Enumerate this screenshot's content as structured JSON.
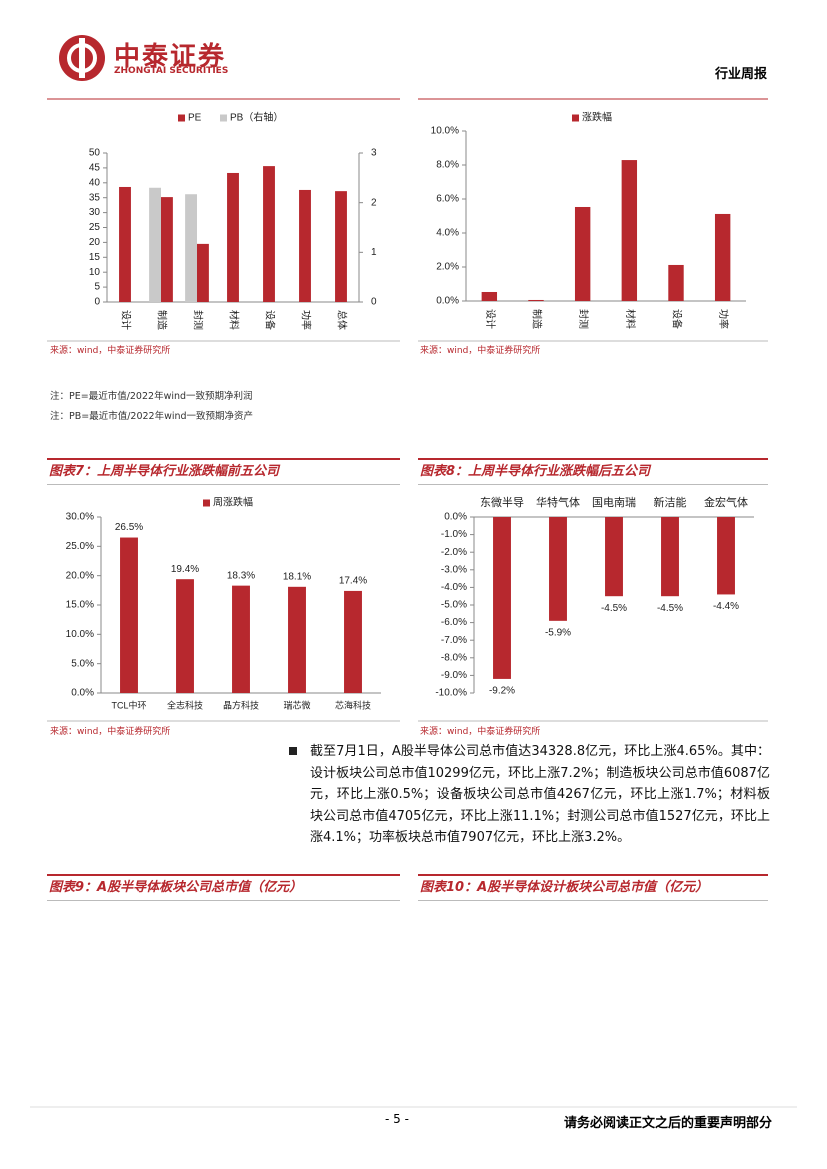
{
  "header": {
    "brand": "中泰证券",
    "brand_en": "ZHONGTAI SECURITIES",
    "report_type": "行业周报"
  },
  "chart_data": [
    {
      "type": "bar",
      "categories": [
        "设计",
        "制造",
        "封测",
        "材料",
        "设备",
        "功率",
        "总体"
      ],
      "series": [
        {
          "name": "PE",
          "color": "#b7282e",
          "values": [
            38.6,
            35.2,
            19.5,
            43.3,
            45.6,
            37.6,
            37.2
          ]
        },
        {
          "name": "PB（右轴）",
          "color": "#c9c9c9",
          "axis": "y2",
          "values": [
            null,
            2.3,
            2.17,
            null,
            null,
            null,
            null
          ]
        }
      ],
      "ylim": [
        0,
        50
      ],
      "yticks": [
        0,
        5,
        10,
        15,
        20,
        25,
        30,
        35,
        40,
        45,
        50
      ],
      "y2lim": [
        0,
        3
      ],
      "y2ticks": [
        0,
        1,
        2,
        3
      ]
    },
    {
      "type": "bar",
      "categories": [
        "设计",
        "制造",
        "封测",
        "材料",
        "设备",
        "功率"
      ],
      "series": [
        {
          "name": "涨跌幅",
          "color": "#b7282e",
          "values": [
            0.53,
            0.06,
            5.53,
            8.29,
            2.12,
            5.12
          ]
        }
      ],
      "ylim": [
        0,
        10
      ],
      "yticks": [
        {
          "value": 0,
          "label": "0.0%"
        },
        {
          "value": 2,
          "label": "2.0%"
        },
        {
          "value": 4,
          "label": "4.0%"
        },
        {
          "value": 6,
          "label": "6.0%"
        },
        {
          "value": 8,
          "label": "8.0%"
        },
        {
          "value": 10,
          "label": "10.0%"
        }
      ]
    },
    {
      "type": "bar",
      "categories": [
        "TCL中环",
        "全志科技",
        "晶方科技",
        "瑞芯微",
        "芯海科技"
      ],
      "series": [
        {
          "name": "周涨跌幅",
          "color": "#b7282e",
          "values": [
            26.5,
            19.4,
            18.3,
            18.1,
            17.4
          ],
          "value_labels": [
            "26.5%",
            "19.4%",
            "18.3%",
            "18.1%",
            "17.4%"
          ]
        }
      ],
      "ylim": [
        0,
        30
      ],
      "yticks": [
        {
          "value": 0,
          "label": "0.0%"
        },
        {
          "value": 5,
          "label": "5.0%"
        },
        {
          "value": 10,
          "label": "10.0%"
        },
        {
          "value": 15,
          "label": "15.0%"
        },
        {
          "value": 20,
          "label": "20.0%"
        },
        {
          "value": 25,
          "label": "25.0%"
        },
        {
          "value": 30,
          "label": "30.0%"
        }
      ]
    },
    {
      "type": "bar",
      "categories": [
        "东微半导",
        "华特气体",
        "国电南瑞",
        "新洁能",
        "金宏气体"
      ],
      "values": [
        -9.2,
        -5.9,
        -4.5,
        -4.5,
        -4.4
      ],
      "value_labels": [
        "-9.2%",
        "-5.9%",
        "-4.5%",
        "-4.5%",
        "-4.4%"
      ],
      "color": "#b7282e",
      "ylim": [
        -10,
        0
      ],
      "yticks": [
        {
          "value": 0,
          "label": "0.0%"
        },
        {
          "value": -1,
          "label": "-1.0%"
        },
        {
          "value": -2,
          "label": "-2.0%"
        },
        {
          "value": -3,
          "label": "-3.0%"
        },
        {
          "value": -4,
          "label": "-4.0%"
        },
        {
          "value": -5,
          "label": "-5.0%"
        },
        {
          "value": -6,
          "label": "-6.0%"
        },
        {
          "value": -7,
          "label": "-7.0%"
        },
        {
          "value": -8,
          "label": "-8.0%"
        },
        {
          "value": -9,
          "label": "-9.0%"
        },
        {
          "value": -10,
          "label": "-10.0%"
        }
      ]
    }
  ],
  "sources": [
    "来源：wind，中泰证券研究所",
    "来源：wind，中泰证券研究所",
    "来源：wind，中泰证券研究所",
    "来源：wind，中泰证券研究所"
  ],
  "notes": [
    "注：PE=最近市值/2022年wind一致预期净利润",
    "注：PB=最近市值/2022年wind一致预期净资产"
  ],
  "figure_titles": [
    "图表7：上周半导体行业涨跌幅前五公司",
    "图表8：上周半导体行业涨跌幅后五公司",
    "图表9：A股半导体板块公司总市值（亿元）",
    "图表10：A股半导体设计板块公司总市值（亿元）"
  ],
  "paragraph": "截至7月1日，A股半导体公司总市值达34328.8亿元，环比上涨4.65%。其中：设计板块公司总市值10299亿元，环比上涨7.2%；制造板块公司总市值6087亿元，环比上涨0.5%；设备板块公司总市值4267亿元，环比上涨1.7%；材料板块公司总市值4705亿元，环比上涨11.1%；封测公司总市值1527亿元，环比上涨4.1%；功率板块总市值7907亿元，环比上涨3.2%。",
  "footer": {
    "page": "- 5 -",
    "disclaimer": "请务必阅读正文之后的重要声明部分"
  }
}
